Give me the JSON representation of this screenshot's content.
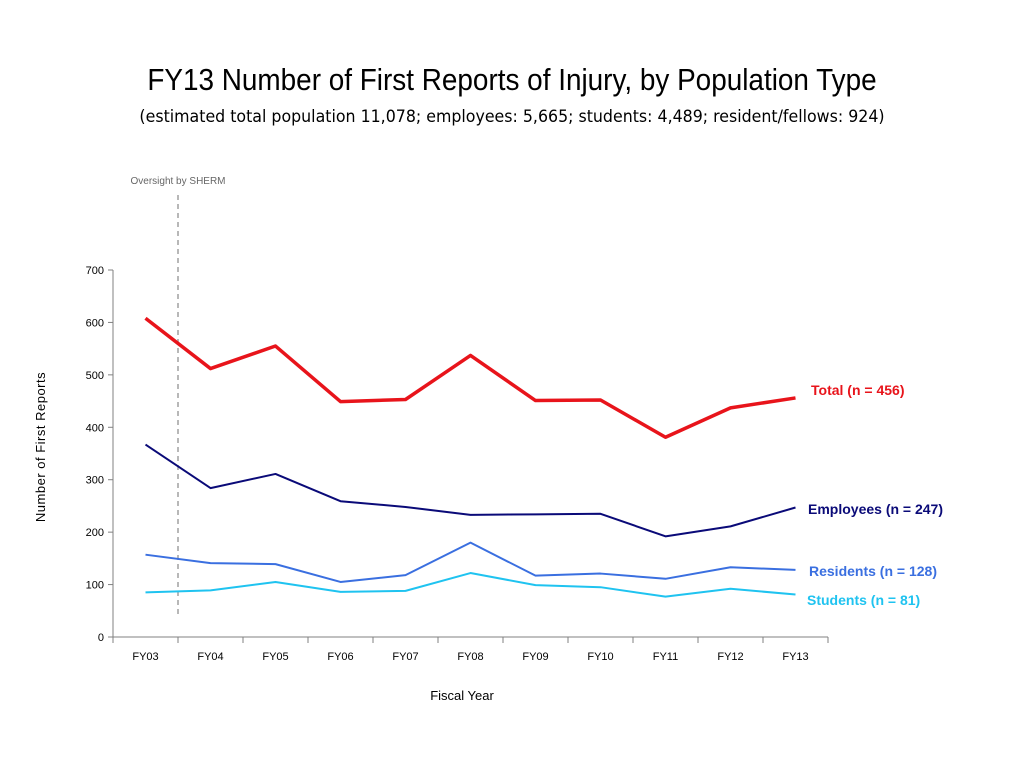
{
  "slide": {
    "title": "FY13 Number of First Reports of Injury, by Population Type",
    "subtitle": "(estimated total population 11,078; employees: 5,665; students: 4,489; resident/fellows: 924)"
  },
  "chart_data": {
    "type": "line",
    "categories": [
      "FY03",
      "FY04",
      "FY05",
      "FY06",
      "FY07",
      "FY08",
      "FY09",
      "FY10",
      "FY11",
      "FY12",
      "FY13"
    ],
    "xlabel": "Fiscal Year",
    "ylabel": "Number of First Reports",
    "ylim": [
      0,
      700
    ],
    "yticks": [
      0,
      100,
      200,
      300,
      400,
      500,
      600,
      700
    ],
    "grid": false,
    "annotation": {
      "text": "Oversight by SHERM",
      "position_between": [
        "FY03",
        "FY04"
      ]
    },
    "series": [
      {
        "name": "Total (n = 456)",
        "color": "#e8141b",
        "values": [
          608,
          512,
          555,
          449,
          453,
          537,
          451,
          452,
          381,
          437,
          456
        ]
      },
      {
        "name": "Employees (n = 247)",
        "color": "#0a0a78",
        "values": [
          367,
          284,
          311,
          259,
          248,
          233,
          234,
          235,
          192,
          211,
          247
        ]
      },
      {
        "name": "Residents (n = 128)",
        "color": "#3a6fe0",
        "values": [
          157,
          141,
          139,
          105,
          118,
          180,
          117,
          121,
          111,
          133,
          128
        ]
      },
      {
        "name": "Students (n  = 81)",
        "color": "#1fc3f0",
        "values": [
          85,
          89,
          105,
          86,
          88,
          122,
          99,
          95,
          77,
          92,
          81
        ]
      }
    ]
  }
}
